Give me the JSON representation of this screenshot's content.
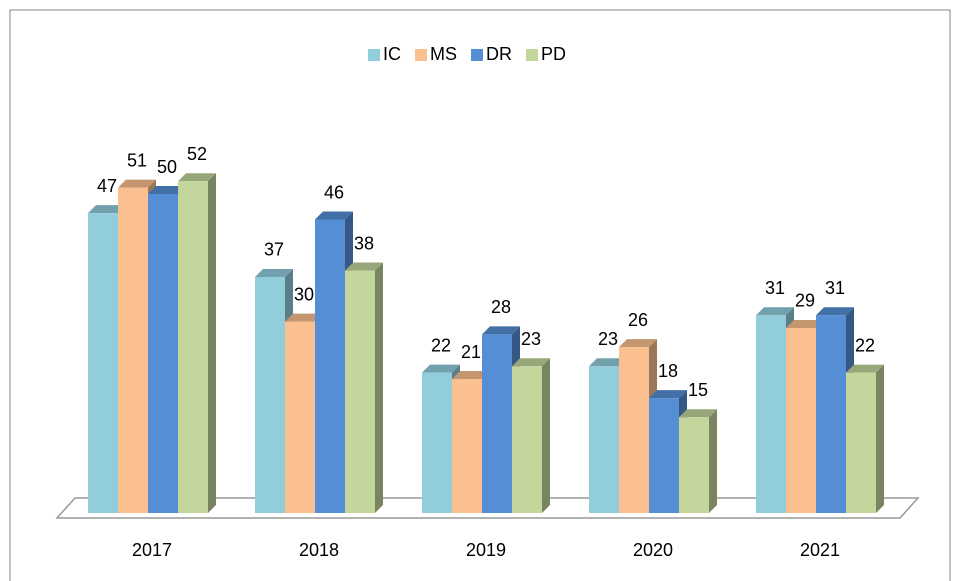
{
  "chart_data": {
    "type": "bar3d",
    "categories": [
      "2017",
      "2018",
      "2019",
      "2020",
      "2021"
    ],
    "series": [
      {
        "name": "IC",
        "color": "#92cddc",
        "values": [
          47,
          37,
          22,
          23,
          31
        ]
      },
      {
        "name": "MS",
        "color": "#fac090",
        "values": [
          51,
          30,
          21,
          26,
          29
        ]
      },
      {
        "name": "DR",
        "color": "#558ed5",
        "values": [
          50,
          46,
          28,
          18,
          31
        ]
      },
      {
        "name": "PD",
        "color": "#c3d69b",
        "values": [
          52,
          38,
          23,
          15,
          22
        ]
      }
    ],
    "legend": "top"
  }
}
